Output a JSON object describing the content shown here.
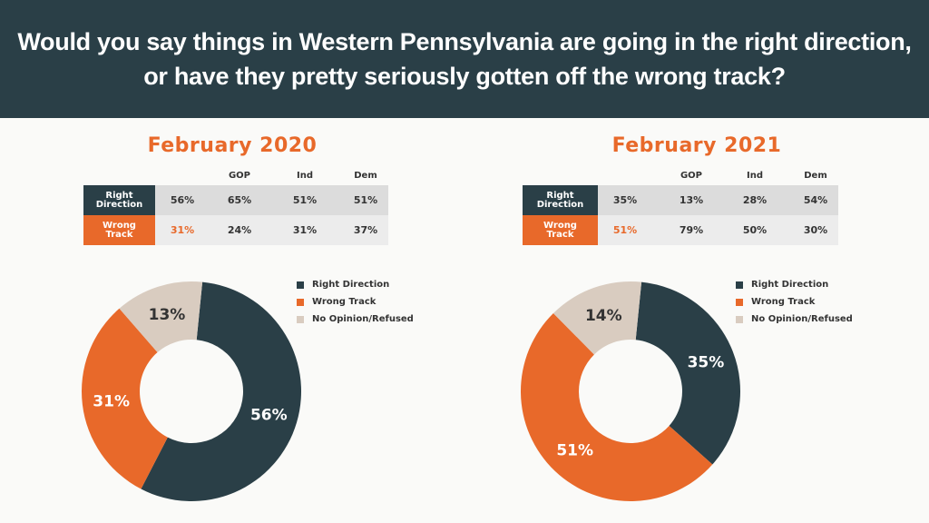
{
  "header": {
    "line1": "Would you say things in Western Pennsylvania are going in the right direction,",
    "line2": "or have they pretty seriously gotten off the wrong track?"
  },
  "colors": {
    "right_direction": "#2a3f47",
    "wrong_track": "#e8692a",
    "no_opinion": "#d9ccc0"
  },
  "legend": [
    "Right Direction",
    "Wrong Track",
    "No Opinion/Refused"
  ],
  "table_columns": [
    "GOP",
    "Ind",
    "Dem"
  ],
  "panels": [
    {
      "title": "February 2020",
      "rows": [
        {
          "label": "Right\nDirection",
          "values": [
            "56%",
            "65%",
            "51%",
            "51%"
          ]
        },
        {
          "label": "Wrong\nTrack",
          "values": [
            "31%",
            "24%",
            "31%",
            "37%"
          ]
        }
      ]
    },
    {
      "title": "February 2021",
      "rows": [
        {
          "label": "Right\nDirection",
          "values": [
            "35%",
            "13%",
            "28%",
            "54%"
          ]
        },
        {
          "label": "Wrong\nTrack",
          "values": [
            "51%",
            "79%",
            "50%",
            "30%"
          ]
        }
      ]
    }
  ],
  "chart_data": [
    {
      "type": "pie",
      "title": "February 2020",
      "categories": [
        "Right Direction",
        "Wrong Track",
        "No Opinion/Refused"
      ],
      "values": [
        56,
        31,
        13
      ],
      "labels": [
        "56%",
        "31%",
        "13%"
      ],
      "legend": "right"
    },
    {
      "type": "pie",
      "title": "February 2021",
      "categories": [
        "Right Direction",
        "Wrong Track",
        "No Opinion/Refused"
      ],
      "values": [
        35,
        51,
        14
      ],
      "labels": [
        "35%",
        "51%",
        "14%"
      ],
      "legend": "right"
    }
  ]
}
